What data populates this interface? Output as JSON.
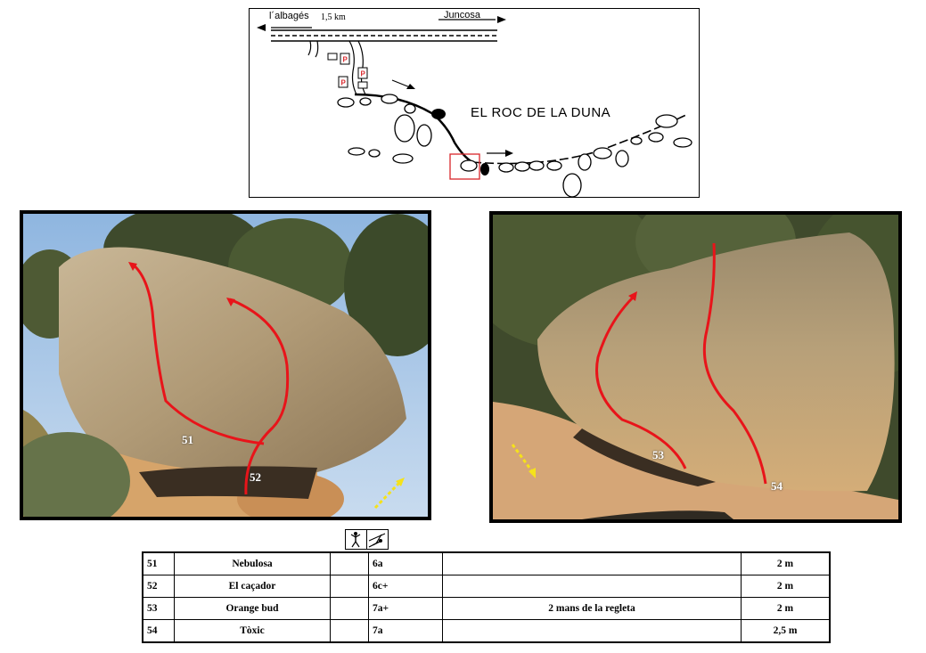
{
  "map": {
    "left_destination": "l´albagés",
    "distance": "1,5 km",
    "right_destination": "Juncosa",
    "sector_name": "EL ROC DE LA DUNA",
    "parking_label": "P",
    "colors": {
      "parking": "#d9262b",
      "highlight_box": "#d9262b"
    }
  },
  "photos": {
    "left": {
      "route_labels": [
        "51",
        "52"
      ]
    },
    "right": {
      "route_labels": [
        "53",
        "54"
      ]
    },
    "colors": {
      "route_line": "#e8141a",
      "approach_arrow": "#f5e21a"
    }
  },
  "table": {
    "rows": [
      {
        "num": "51",
        "name": "Nebulosa",
        "style": "",
        "grade": "6a",
        "notes": "",
        "height": "2 m"
      },
      {
        "num": "52",
        "name": "El caçador",
        "style": "",
        "grade": "6c+",
        "notes": "",
        "height": "2 m"
      },
      {
        "num": "53",
        "name": "Orange bud",
        "style": "",
        "grade": "7a+",
        "notes": "2 mans de la regleta",
        "height": "2 m"
      },
      {
        "num": "54",
        "name": "Tòxic",
        "style": "",
        "grade": "7a",
        "notes": "",
        "height": "2,5 m"
      }
    ]
  }
}
